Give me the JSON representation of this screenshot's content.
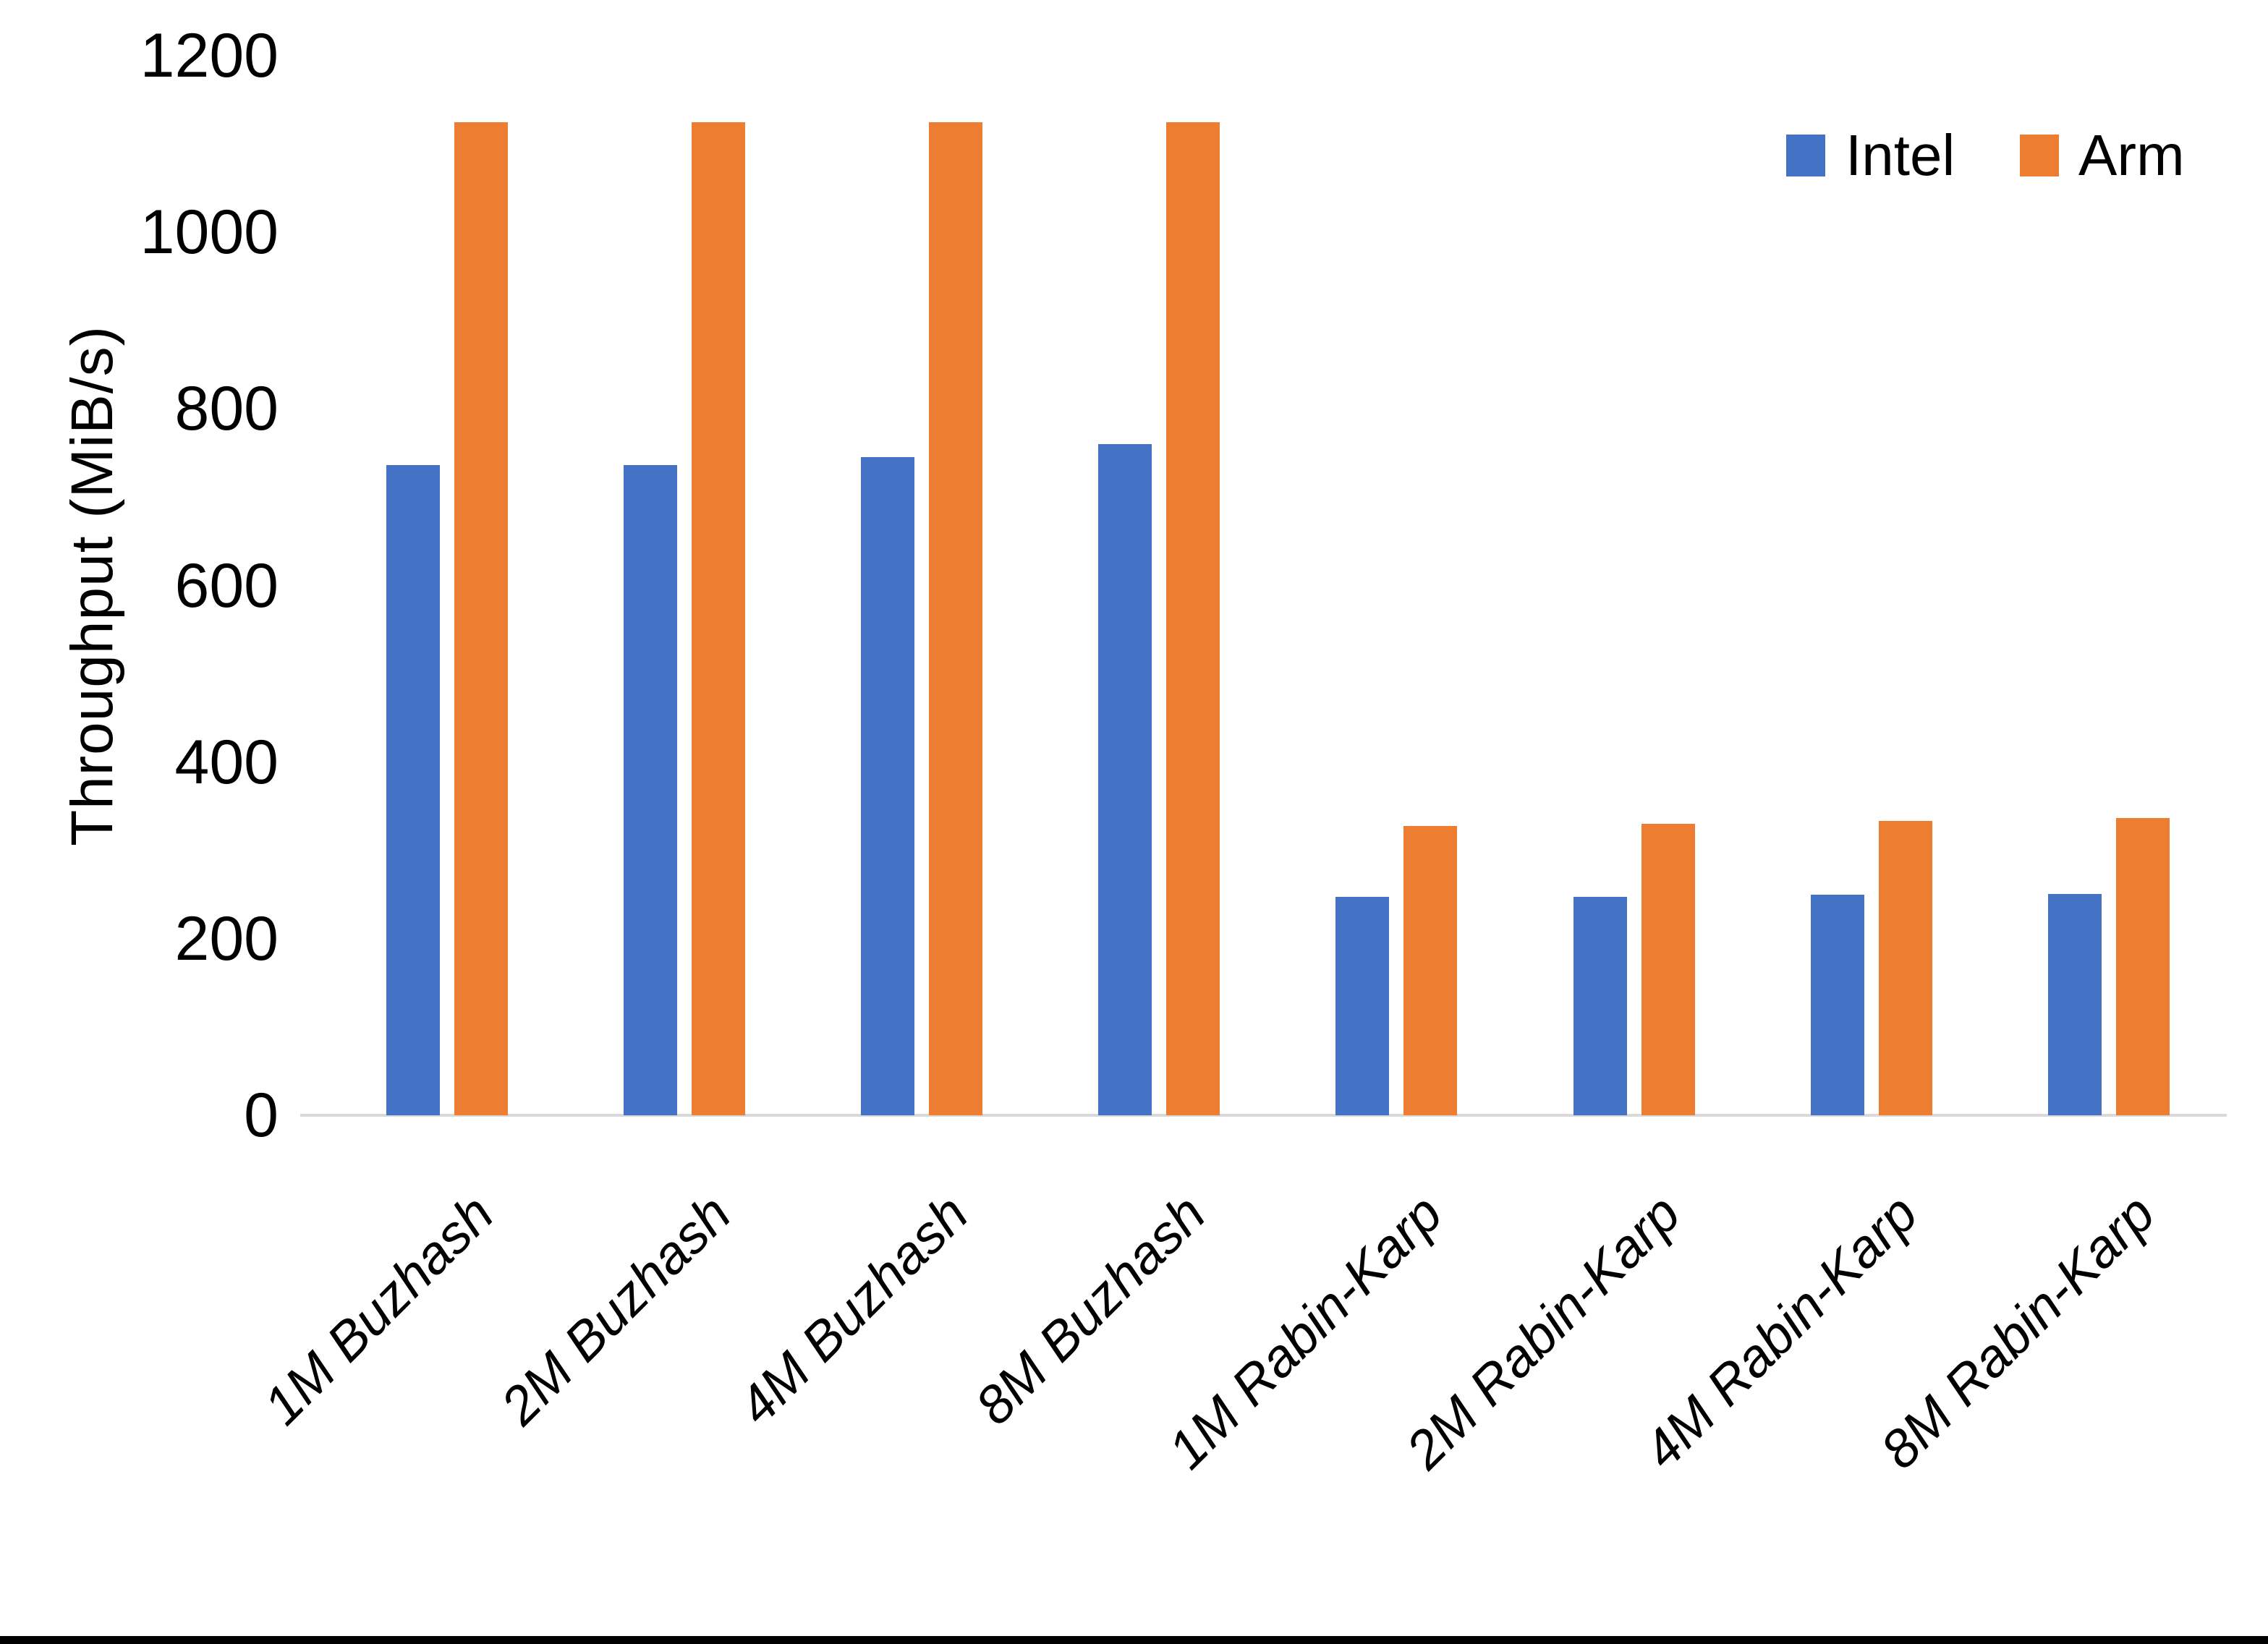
{
  "page": {
    "background": "#ffffff",
    "bottom_border_color": "#000000",
    "axis_line_color": "#d9d9d9",
    "text_color": "#000000"
  },
  "chart_data": {
    "type": "bar",
    "title": "",
    "xlabel": "",
    "ylabel": "Throughput (MiB/s)",
    "ylim": [
      0,
      1200
    ],
    "yticks": [
      0,
      200,
      400,
      600,
      800,
      1000,
      1200
    ],
    "grid": false,
    "legend_position": "top-right",
    "categories": [
      "1M Buzhash",
      "2M Buzhash",
      "4M Buzhash",
      "8M Buzhash",
      "1M Rabin-Karp",
      "2M Rabin-Karp",
      "4M Rabin-Karp",
      "8M Rabin-Karp"
    ],
    "series": [
      {
        "name": "Intel",
        "color": "#4472C4",
        "values": [
          736,
          736,
          745,
          760,
          247,
          247,
          250,
          251
        ]
      },
      {
        "name": "Arm",
        "color": "#ED7D31",
        "values": [
          1125,
          1125,
          1125,
          1125,
          328,
          330,
          333,
          337
        ]
      }
    ]
  }
}
